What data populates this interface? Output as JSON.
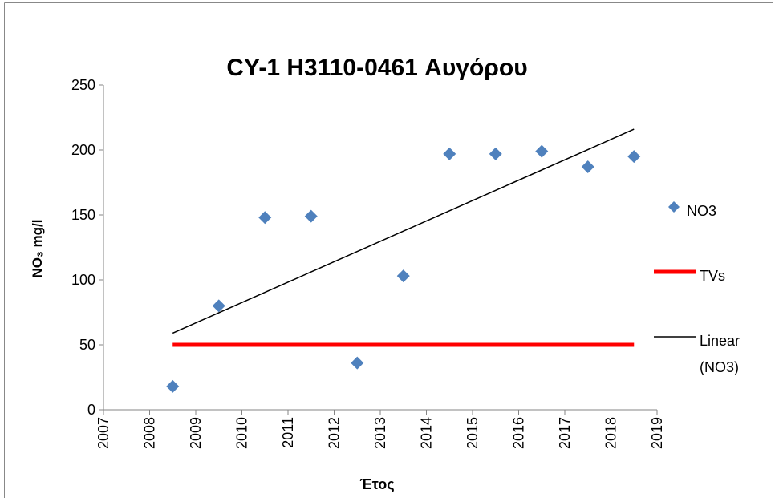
{
  "chart_data": {
    "type": "scatter",
    "title": "CY-1 H3110-0461 Αυγόρου",
    "x_label": "Έτος",
    "y_label": "NO₃ mg/l",
    "xlim": [
      2007,
      2019
    ],
    "xticks": [
      2007,
      2008,
      2009,
      2010,
      2011,
      2012,
      2013,
      2014,
      2015,
      2016,
      2017,
      2018,
      2019
    ],
    "ylim": [
      0,
      250
    ],
    "yticks": [
      0,
      50,
      100,
      150,
      200,
      250
    ],
    "grid": false,
    "legend": "right",
    "series": [
      {
        "name": "NO3",
        "color": "#4f81bd",
        "mode": "markers",
        "x": [
          2008.5,
          2009.5,
          2010.5,
          2011.5,
          2012.5,
          2013.5,
          2014.5,
          2015.5,
          2016.5,
          2017.5,
          2018.5
        ],
        "values": [
          18,
          80,
          148,
          149,
          36,
          103,
          197,
          197,
          199,
          187,
          195
        ]
      },
      {
        "name": "TVs",
        "color": "#ff0000",
        "mode": "line",
        "width": 5,
        "x": [
          2008.5,
          2018.5
        ],
        "values": [
          50,
          50
        ]
      },
      {
        "name": "Linear (NO3)",
        "color": "#000000",
        "mode": "line",
        "width": 1.5,
        "x": [
          2008.5,
          2018.5
        ],
        "values": [
          59,
          216
        ]
      }
    ]
  }
}
